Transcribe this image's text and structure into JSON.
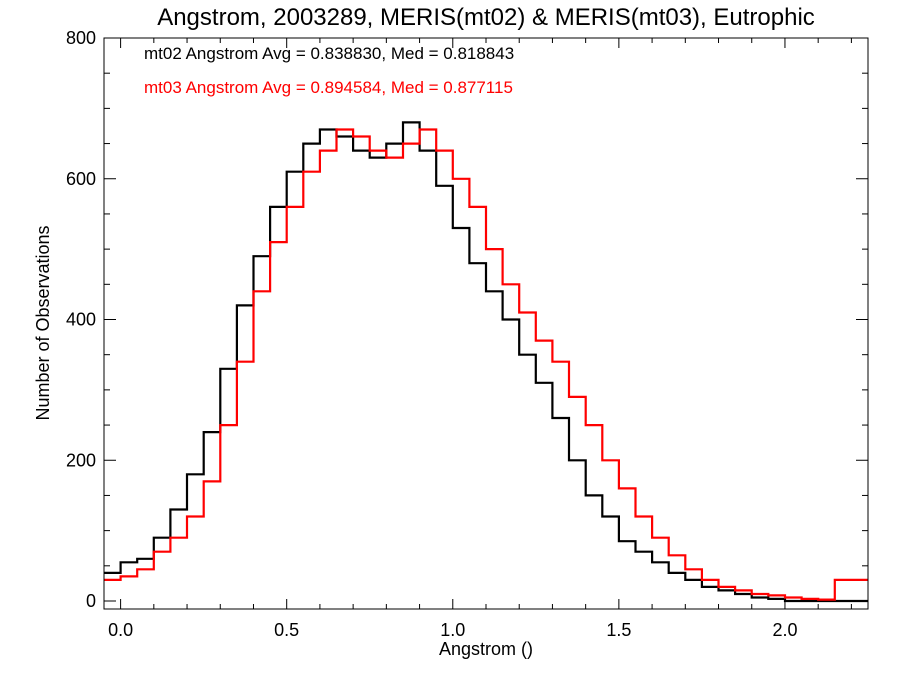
{
  "chart_data": {
    "type": "line",
    "title": "Angstrom, 2003289, MERIS(mt02) & MERIS(mt03), Eutrophic",
    "xlabel": "Angstrom ()",
    "ylabel": "Number of Observations",
    "xlim": [
      -0.05,
      2.25
    ],
    "ylim": [
      0,
      800
    ],
    "xticks": [
      0.0,
      0.5,
      1.0,
      1.5,
      2.0
    ],
    "xtick_labels": [
      "0.0",
      "0.5",
      "1.0",
      "1.5",
      "2.0"
    ],
    "yticks": [
      0,
      200,
      400,
      600,
      800
    ],
    "ytick_labels": [
      "0",
      "200",
      "400",
      "600",
      "800"
    ],
    "grid": false,
    "annotations": [
      {
        "text": "mt02 Angstrom Avg = 0.838830, Med = 0.818843",
        "color": "#000000"
      },
      {
        "text": "mt03 Angstrom Avg = 0.894584, Med = 0.877115",
        "color": "#ff0000"
      }
    ],
    "series": [
      {
        "color": "#000000",
        "step": "histogram",
        "x": [
          -0.05,
          0.0,
          0.05,
          0.1,
          0.15,
          0.2,
          0.25,
          0.3,
          0.35,
          0.4,
          0.45,
          0.5,
          0.55,
          0.6,
          0.65,
          0.7,
          0.75,
          0.8,
          0.85,
          0.9,
          0.95,
          1.0,
          1.05,
          1.1,
          1.15,
          1.2,
          1.25,
          1.3,
          1.35,
          1.4,
          1.45,
          1.5,
          1.55,
          1.6,
          1.65,
          1.7,
          1.75,
          1.8,
          1.85,
          1.9,
          1.95,
          2.0,
          2.05,
          2.1,
          2.15
        ],
        "y": [
          40,
          55,
          60,
          90,
          130,
          180,
          240,
          330,
          420,
          490,
          560,
          610,
          650,
          670,
          660,
          640,
          630,
          650,
          680,
          640,
          590,
          530,
          480,
          440,
          400,
          350,
          310,
          260,
          200,
          150,
          120,
          85,
          70,
          55,
          40,
          30,
          20,
          15,
          10,
          5,
          3,
          0,
          0,
          0,
          0
        ]
      },
      {
        "color": "#ff0000",
        "step": "histogram",
        "x": [
          -0.05,
          0.0,
          0.05,
          0.1,
          0.15,
          0.2,
          0.25,
          0.3,
          0.35,
          0.4,
          0.45,
          0.5,
          0.55,
          0.6,
          0.65,
          0.7,
          0.75,
          0.8,
          0.85,
          0.9,
          0.95,
          1.0,
          1.05,
          1.1,
          1.15,
          1.2,
          1.25,
          1.3,
          1.35,
          1.4,
          1.45,
          1.5,
          1.55,
          1.6,
          1.65,
          1.7,
          1.75,
          1.8,
          1.85,
          1.9,
          1.95,
          2.0,
          2.05,
          2.1,
          2.15
        ],
        "y": [
          30,
          35,
          45,
          70,
          90,
          120,
          170,
          250,
          340,
          440,
          510,
          560,
          610,
          640,
          670,
          660,
          640,
          630,
          650,
          670,
          640,
          600,
          560,
          500,
          450,
          410,
          370,
          340,
          290,
          250,
          200,
          160,
          120,
          90,
          65,
          45,
          30,
          20,
          15,
          10,
          8,
          5,
          3,
          2,
          30
        ]
      }
    ]
  }
}
